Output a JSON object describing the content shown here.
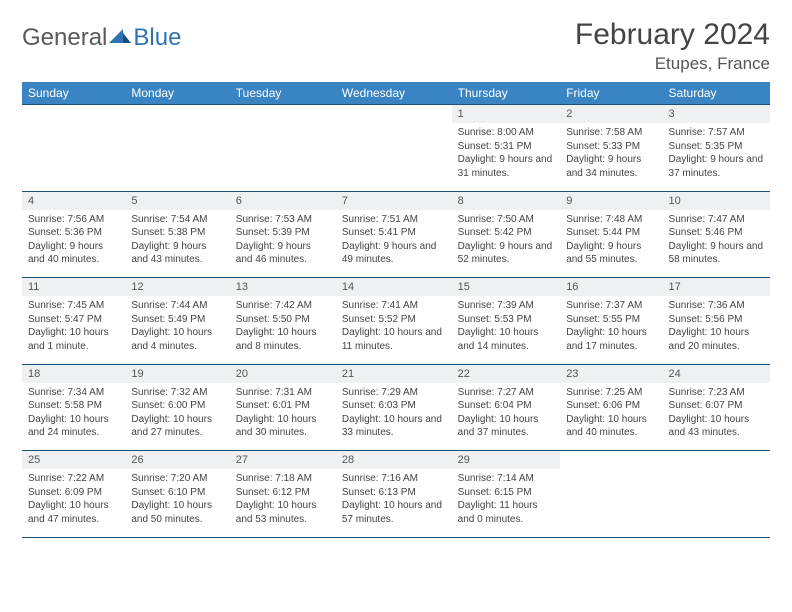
{
  "brand": {
    "general": "General",
    "blue": "Blue"
  },
  "title": "February 2024",
  "location": "Etupes, France",
  "colors": {
    "header_bg": "#3b84c4",
    "header_text": "#ffffff",
    "daynum_bg": "#eef0f2",
    "border": "#1b4f7a",
    "logo_blue": "#2f72b6",
    "logo_gray": "#5a5a5a"
  },
  "day_names": [
    "Sunday",
    "Monday",
    "Tuesday",
    "Wednesday",
    "Thursday",
    "Friday",
    "Saturday"
  ],
  "weeks": [
    [
      null,
      null,
      null,
      null,
      {
        "n": "1",
        "sr": "8:00 AM",
        "ss": "5:31 PM",
        "dl": "9 hours and 31 minutes."
      },
      {
        "n": "2",
        "sr": "7:58 AM",
        "ss": "5:33 PM",
        "dl": "9 hours and 34 minutes."
      },
      {
        "n": "3",
        "sr": "7:57 AM",
        "ss": "5:35 PM",
        "dl": "9 hours and 37 minutes."
      }
    ],
    [
      {
        "n": "4",
        "sr": "7:56 AM",
        "ss": "5:36 PM",
        "dl": "9 hours and 40 minutes."
      },
      {
        "n": "5",
        "sr": "7:54 AM",
        "ss": "5:38 PM",
        "dl": "9 hours and 43 minutes."
      },
      {
        "n": "6",
        "sr": "7:53 AM",
        "ss": "5:39 PM",
        "dl": "9 hours and 46 minutes."
      },
      {
        "n": "7",
        "sr": "7:51 AM",
        "ss": "5:41 PM",
        "dl": "9 hours and 49 minutes."
      },
      {
        "n": "8",
        "sr": "7:50 AM",
        "ss": "5:42 PM",
        "dl": "9 hours and 52 minutes."
      },
      {
        "n": "9",
        "sr": "7:48 AM",
        "ss": "5:44 PM",
        "dl": "9 hours and 55 minutes."
      },
      {
        "n": "10",
        "sr": "7:47 AM",
        "ss": "5:46 PM",
        "dl": "9 hours and 58 minutes."
      }
    ],
    [
      {
        "n": "11",
        "sr": "7:45 AM",
        "ss": "5:47 PM",
        "dl": "10 hours and 1 minute."
      },
      {
        "n": "12",
        "sr": "7:44 AM",
        "ss": "5:49 PM",
        "dl": "10 hours and 4 minutes."
      },
      {
        "n": "13",
        "sr": "7:42 AM",
        "ss": "5:50 PM",
        "dl": "10 hours and 8 minutes."
      },
      {
        "n": "14",
        "sr": "7:41 AM",
        "ss": "5:52 PM",
        "dl": "10 hours and 11 minutes."
      },
      {
        "n": "15",
        "sr": "7:39 AM",
        "ss": "5:53 PM",
        "dl": "10 hours and 14 minutes."
      },
      {
        "n": "16",
        "sr": "7:37 AM",
        "ss": "5:55 PM",
        "dl": "10 hours and 17 minutes."
      },
      {
        "n": "17",
        "sr": "7:36 AM",
        "ss": "5:56 PM",
        "dl": "10 hours and 20 minutes."
      }
    ],
    [
      {
        "n": "18",
        "sr": "7:34 AM",
        "ss": "5:58 PM",
        "dl": "10 hours and 24 minutes."
      },
      {
        "n": "19",
        "sr": "7:32 AM",
        "ss": "6:00 PM",
        "dl": "10 hours and 27 minutes."
      },
      {
        "n": "20",
        "sr": "7:31 AM",
        "ss": "6:01 PM",
        "dl": "10 hours and 30 minutes."
      },
      {
        "n": "21",
        "sr": "7:29 AM",
        "ss": "6:03 PM",
        "dl": "10 hours and 33 minutes."
      },
      {
        "n": "22",
        "sr": "7:27 AM",
        "ss": "6:04 PM",
        "dl": "10 hours and 37 minutes."
      },
      {
        "n": "23",
        "sr": "7:25 AM",
        "ss": "6:06 PM",
        "dl": "10 hours and 40 minutes."
      },
      {
        "n": "24",
        "sr": "7:23 AM",
        "ss": "6:07 PM",
        "dl": "10 hours and 43 minutes."
      }
    ],
    [
      {
        "n": "25",
        "sr": "7:22 AM",
        "ss": "6:09 PM",
        "dl": "10 hours and 47 minutes."
      },
      {
        "n": "26",
        "sr": "7:20 AM",
        "ss": "6:10 PM",
        "dl": "10 hours and 50 minutes."
      },
      {
        "n": "27",
        "sr": "7:18 AM",
        "ss": "6:12 PM",
        "dl": "10 hours and 53 minutes."
      },
      {
        "n": "28",
        "sr": "7:16 AM",
        "ss": "6:13 PM",
        "dl": "10 hours and 57 minutes."
      },
      {
        "n": "29",
        "sr": "7:14 AM",
        "ss": "6:15 PM",
        "dl": "11 hours and 0 minutes."
      },
      null,
      null
    ]
  ]
}
